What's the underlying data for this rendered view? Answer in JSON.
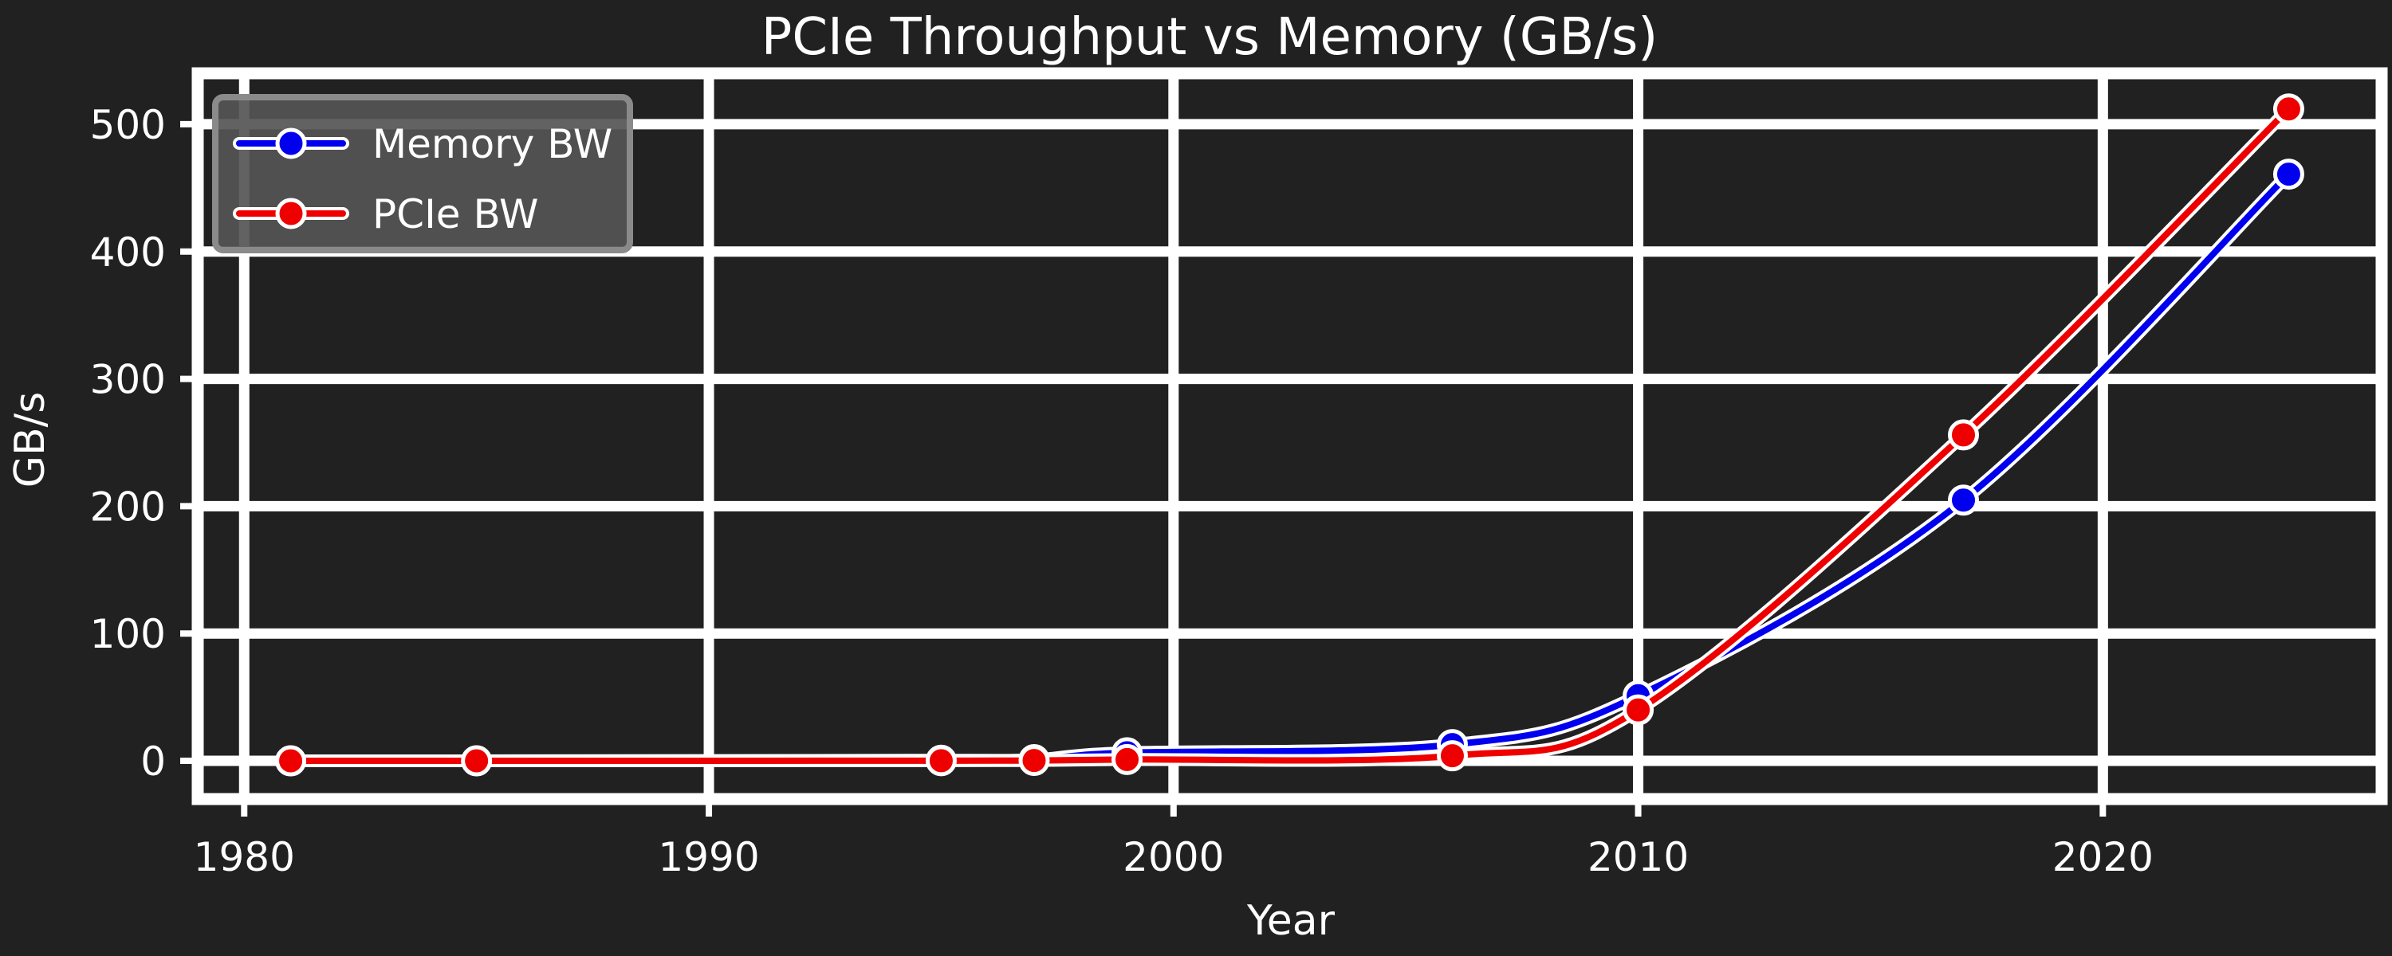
{
  "chart_data": {
    "type": "line",
    "title": "PCIe Throughput vs Memory (GB/s)",
    "xlabel": "Year",
    "ylabel": "GB/s",
    "xlim": [
      1979,
      2026
    ],
    "ylim": [
      -30,
      540
    ],
    "xticks": [
      1980,
      1990,
      2000,
      2010,
      2020
    ],
    "yticks": [
      0,
      100,
      200,
      300,
      400,
      500
    ],
    "grid": true,
    "legend_position": "top-left",
    "background": "#212121",
    "series": [
      {
        "name": "Memory BW",
        "color": "#0000ee",
        "points": [
          {
            "x": 1981,
            "y": 0.01
          },
          {
            "x": 1985,
            "y": 0.05
          },
          {
            "x": 1995,
            "y": 0.5
          },
          {
            "x": 1997,
            "y": 1
          },
          {
            "x": 1999,
            "y": 6.4
          },
          {
            "x": 2006,
            "y": 12.8
          },
          {
            "x": 2010,
            "y": 51.2
          },
          {
            "x": 2017,
            "y": 204.8
          },
          {
            "x": 2024,
            "y": 460.8
          }
        ]
      },
      {
        "name": "PCIe BW",
        "color": "#ee0000",
        "points": [
          {
            "x": 1981,
            "y": 0.008
          },
          {
            "x": 1985,
            "y": 0.016
          },
          {
            "x": 1995,
            "y": 0.133
          },
          {
            "x": 1997,
            "y": 0.266
          },
          {
            "x": 1999,
            "y": 1.06
          },
          {
            "x": 2006,
            "y": 4
          },
          {
            "x": 2010,
            "y": 40
          },
          {
            "x": 2017,
            "y": 256
          },
          {
            "x": 2024,
            "y": 512
          }
        ]
      }
    ]
  }
}
